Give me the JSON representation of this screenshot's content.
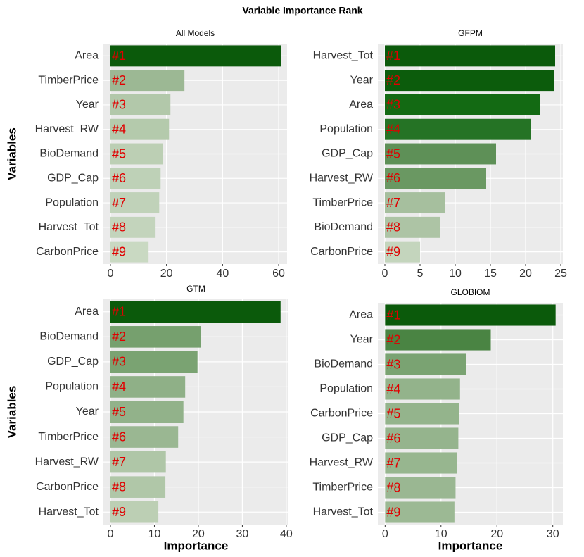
{
  "title": "Variable Importance Rank",
  "chart_data": [
    {
      "type": "bar",
      "orientation": "horizontal",
      "title": "All Models",
      "y_label": "Variables",
      "categories": [
        "Area",
        "TimberPrice",
        "Year",
        "Harvest_RW",
        "BioDemand",
        "GDP_Cap",
        "Population",
        "Harvest_Tot",
        "CarbonPrice"
      ],
      "values": [
        60.9,
        26.4,
        21.4,
        20.9,
        18.6,
        17.9,
        17.4,
        16.1,
        13.6
      ],
      "rank_labels": [
        "#1",
        "#2",
        "#3",
        "#4",
        "#5",
        "#6",
        "#7",
        "#8",
        "#9"
      ],
      "colors": [
        "#0b5a0b",
        "#9cb894",
        "#b2c8aa",
        "#b4caac",
        "#bccfb4",
        "#bed1b7",
        "#c0d2b9",
        "#c3d4bc",
        "#c9d9c2"
      ],
      "xlim": [
        -2.5,
        63
      ],
      "xticks": [
        0,
        20,
        40,
        60
      ],
      "grid": true
    },
    {
      "type": "bar",
      "orientation": "horizontal",
      "title": "GFPM",
      "categories": [
        "Harvest_Tot",
        "Year",
        "Area",
        "Population",
        "GDP_Cap",
        "Harvest_RW",
        "TimberPrice",
        "BioDemand",
        "CarbonPrice"
      ],
      "values": [
        24.2,
        24.0,
        22.0,
        20.7,
        15.8,
        14.4,
        8.6,
        7.8,
        5.0
      ],
      "rank_labels": [
        "#1",
        "#2",
        "#3",
        "#4",
        "#5",
        "#6",
        "#7",
        "#8",
        "#9"
      ],
      "colors": [
        "#0b5a0b",
        "#0c5c0c",
        "#136a13",
        "#257325",
        "#5e9057",
        "#6a9862",
        "#a6bf9e",
        "#adc4a5",
        "#c4d5bd"
      ],
      "xlim": [
        -1,
        25.3
      ],
      "xticks": [
        0,
        5,
        10,
        15,
        20,
        25
      ],
      "grid": true
    },
    {
      "type": "bar",
      "orientation": "horizontal",
      "title": "GTM",
      "y_label": "Variables",
      "x_label": "Importance",
      "categories": [
        "Area",
        "BioDemand",
        "GDP_Cap",
        "Population",
        "Year",
        "TimberPrice",
        "Harvest_RW",
        "CarbonPrice",
        "Harvest_Tot"
      ],
      "values": [
        38.7,
        20.5,
        19.8,
        17.0,
        16.6,
        15.4,
        12.6,
        12.5,
        10.9
      ],
      "rank_labels": [
        "#1",
        "#2",
        "#3",
        "#4",
        "#5",
        "#6",
        "#7",
        "#8",
        "#9"
      ],
      "colors": [
        "#0b5a0b",
        "#76a06e",
        "#7aa372",
        "#8fb087",
        "#92b28a",
        "#9ab792",
        "#afc6a7",
        "#b0c7a8",
        "#bccfb4"
      ],
      "xlim": [
        -1.6,
        40.5
      ],
      "xticks": [
        0,
        10,
        20,
        30,
        40
      ],
      "grid": true
    },
    {
      "type": "bar",
      "orientation": "horizontal",
      "title": "GLOBIOM",
      "x_label": "Importance",
      "categories": [
        "Area",
        "Year",
        "BioDemand",
        "Population",
        "CarbonPrice",
        "GDP_Cap",
        "Harvest_RW",
        "TimberPrice",
        "Harvest_Tot"
      ],
      "values": [
        30.5,
        18.9,
        14.5,
        13.4,
        13.2,
        13.1,
        12.9,
        12.6,
        12.4
      ],
      "rank_labels": [
        "#1",
        "#2",
        "#3",
        "#4",
        "#5",
        "#6",
        "#7",
        "#8",
        "#9"
      ],
      "colors": [
        "#0b5a0b",
        "#4a8443",
        "#7aa372",
        "#93b38b",
        "#94b48c",
        "#95b48d",
        "#97b68f",
        "#9ab792",
        "#9cb994"
      ],
      "xlim": [
        -1.3,
        31.8
      ],
      "xticks": [
        0,
        10,
        20,
        30
      ],
      "grid": true
    }
  ]
}
